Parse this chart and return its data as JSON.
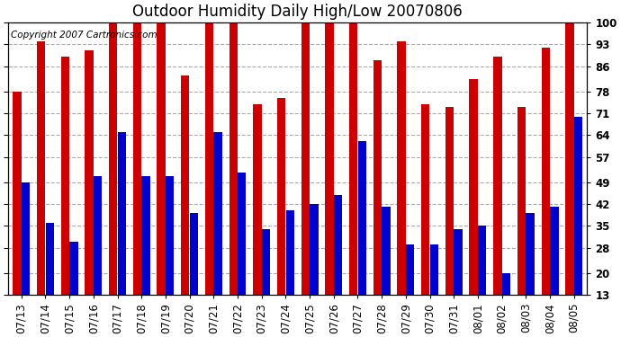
{
  "title": "Outdoor Humidity Daily High/Low 20070806",
  "copyright": "Copyright 2007 Cartronics.com",
  "dates": [
    "07/13",
    "07/14",
    "07/15",
    "07/16",
    "07/17",
    "07/18",
    "07/19",
    "07/20",
    "07/21",
    "07/22",
    "07/23",
    "07/24",
    "07/25",
    "07/26",
    "07/27",
    "07/28",
    "07/29",
    "07/30",
    "07/31",
    "08/01",
    "08/02",
    "08/03",
    "08/04",
    "08/05"
  ],
  "highs": [
    78,
    94,
    89,
    91,
    100,
    100,
    100,
    83,
    100,
    100,
    74,
    76,
    100,
    100,
    100,
    88,
    94,
    74,
    73,
    82,
    89,
    73,
    92,
    100
  ],
  "lows": [
    49,
    36,
    30,
    51,
    65,
    51,
    51,
    39,
    65,
    52,
    34,
    40,
    42,
    45,
    62,
    41,
    29,
    29,
    34,
    35,
    20,
    39,
    41,
    70
  ],
  "high_color": "#cc0000",
  "low_color": "#0000cc",
  "background_color": "#ffffff",
  "plot_bg_color": "#ffffff",
  "grid_color": "#aaaaaa",
  "yticks": [
    13,
    20,
    28,
    35,
    42,
    49,
    57,
    64,
    71,
    78,
    86,
    93,
    100
  ],
  "ymin": 13,
  "ymax": 100,
  "title_fontsize": 12,
  "tick_fontsize": 8.5,
  "copyright_fontsize": 7.5
}
